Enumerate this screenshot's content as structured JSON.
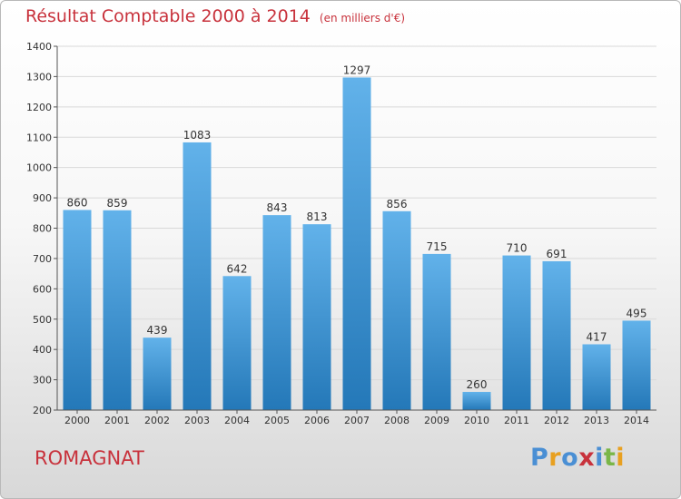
{
  "title": "Résultat Comptable 2000 à 2014",
  "unit_note": "(en milliers d'€)",
  "commune": "ROMAGNAT",
  "logo": {
    "text": "Proxiti",
    "letter_colors": [
      "#4a8fd4",
      "#e8a020",
      "#4a8fd4",
      "#c8323c",
      "#4a8fd4",
      "#7ab648",
      "#e8a020"
    ]
  },
  "colors": {
    "bar_top": "#62b2ea",
    "bar_bottom": "#2478b8",
    "title": "#c8323c",
    "grid": "#d9d9d9",
    "axis": "#555555"
  },
  "chart_data": {
    "type": "bar",
    "categories": [
      "2000",
      "2001",
      "2002",
      "2003",
      "2004",
      "2005",
      "2006",
      "2007",
      "2008",
      "2009",
      "2010",
      "2011",
      "2012",
      "2013",
      "2014"
    ],
    "values": [
      860,
      859,
      439,
      1083,
      642,
      843,
      813,
      1297,
      856,
      715,
      260,
      710,
      691,
      417,
      495
    ],
    "yticks": [
      200,
      300,
      400,
      500,
      600,
      700,
      800,
      900,
      1000,
      1100,
      1200,
      1300,
      1400
    ],
    "ylim": [
      200,
      1400
    ],
    "grid": true,
    "title": "Résultat Comptable 2000 à 2014",
    "xlabel": "",
    "ylabel": ""
  }
}
